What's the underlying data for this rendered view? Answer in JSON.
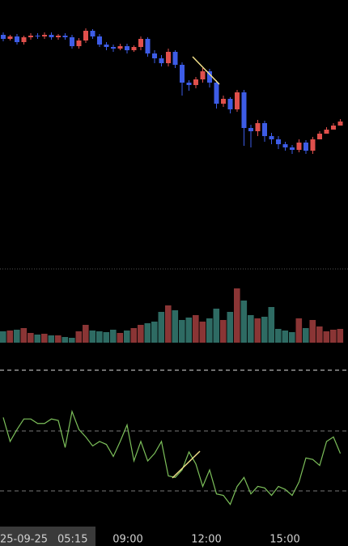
{
  "chart_data": [
    {
      "type": "candlestick",
      "open": [
        287,
        282,
        285,
        278,
        284,
        286,
        285,
        287,
        284,
        286,
        284,
        273,
        280,
        292,
        285,
        275,
        272,
        270,
        273,
        268,
        272,
        282,
        264,
        258,
        252,
        266,
        250,
        228,
        225,
        232,
        242,
        228,
        202,
        208,
        195,
        216,
        172,
        168,
        178,
        162,
        158,
        152,
        148,
        145,
        154,
        144,
        158,
        165,
        170,
        175
      ],
      "high": [
        290,
        287,
        288,
        286,
        289,
        289,
        290,
        290,
        288,
        289,
        287,
        283,
        295,
        294,
        288,
        278,
        275,
        276,
        276,
        274,
        285,
        284,
        268,
        262,
        270,
        268,
        253,
        231,
        235,
        246,
        245,
        231,
        212,
        210,
        219,
        219,
        176,
        182,
        181,
        166,
        162,
        155,
        151,
        158,
        157,
        161,
        168,
        173,
        178,
        183
      ],
      "low": [
        279,
        280,
        275,
        275,
        281,
        282,
        282,
        281,
        281,
        281,
        270,
        270,
        277,
        282,
        272,
        268,
        266,
        268,
        264,
        266,
        268,
        260,
        252,
        248,
        248,
        246,
        212,
        218,
        221,
        228,
        222,
        196,
        198,
        190,
        192,
        150,
        148,
        162,
        155,
        152,
        146,
        144,
        140,
        142,
        140,
        140,
        160,
        165,
        170,
        176
      ],
      "close": [
        282,
        285,
        278,
        284,
        286,
        285,
        287,
        284,
        286,
        284,
        273,
        280,
        292,
        285,
        275,
        272,
        270,
        273,
        268,
        272,
        282,
        264,
        258,
        252,
        266,
        250,
        228,
        225,
        232,
        242,
        228,
        202,
        208,
        195,
        216,
        172,
        168,
        178,
        162,
        158,
        152,
        148,
        145,
        154,
        144,
        158,
        165,
        170,
        175,
        180
      ],
      "ylim": [
        0,
        330
      ],
      "up_color": "#e0504c",
      "down_color": "#3d5ce6"
    },
    {
      "type": "bar",
      "values": [
        14,
        15,
        16,
        18,
        12,
        10,
        11,
        9,
        9,
        7,
        6,
        14,
        22,
        15,
        14,
        13,
        16,
        12,
        15,
        18,
        22,
        24,
        26,
        38,
        46,
        40,
        28,
        31,
        34,
        26,
        30,
        42,
        28,
        38,
        67,
        52,
        34,
        30,
        32,
        44,
        17,
        15,
        13,
        30,
        18,
        28,
        20,
        14,
        16,
        17
      ],
      "ylim": [
        0,
        83
      ],
      "up_color": "#8a3535",
      "down_color": "#2e6b63"
    },
    {
      "type": "line",
      "values": [
        79,
        63,
        71,
        78,
        78,
        75,
        75,
        78,
        77,
        59,
        83,
        71,
        66,
        60,
        63,
        61,
        53,
        63,
        74,
        50,
        63,
        50,
        55,
        63,
        40,
        39,
        44,
        56,
        48,
        33,
        44,
        28,
        27,
        21,
        33,
        39,
        28,
        33,
        32,
        27,
        33,
        31,
        27,
        36,
        52,
        51,
        47,
        63,
        66,
        55
      ],
      "ylim": [
        0,
        100
      ],
      "levels": [
        70,
        30
      ],
      "color": "#7cbf5a"
    }
  ],
  "x_axis": {
    "crosshair_date": "25-09-25",
    "crosshair_time": "05:15",
    "labels": [
      "09:00",
      "12:00",
      "15:00"
    ]
  }
}
